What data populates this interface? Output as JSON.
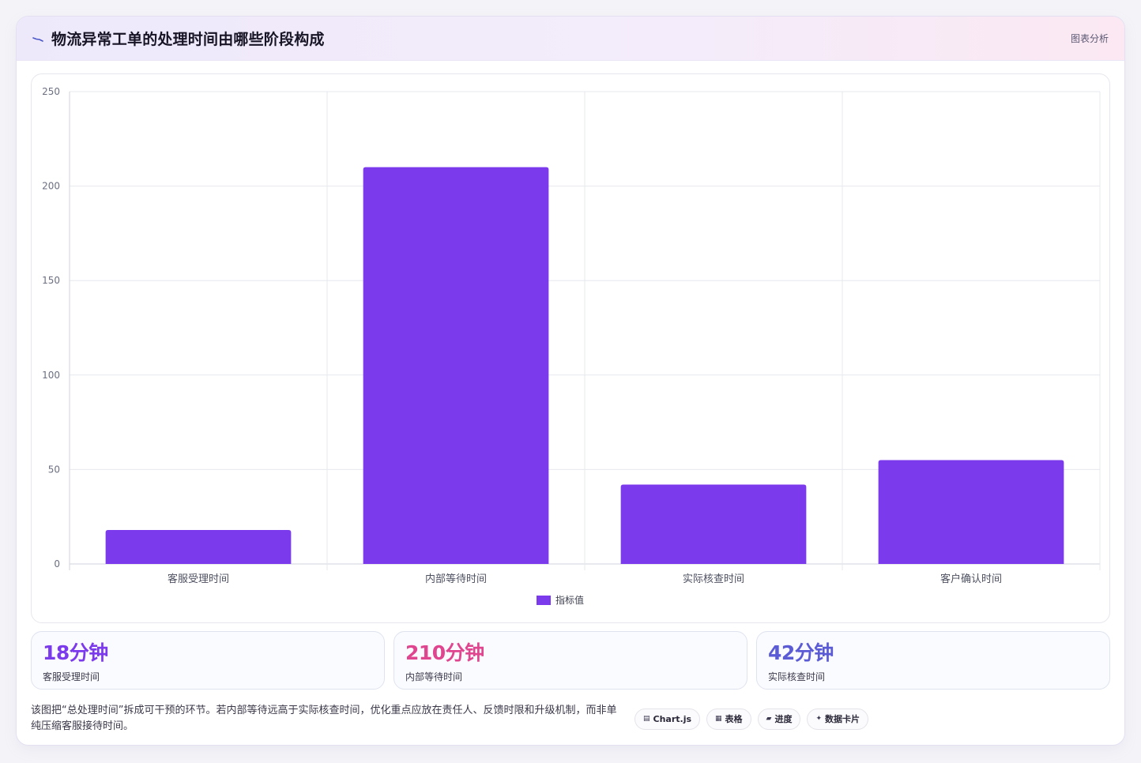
{
  "header": {
    "title": "物流异常工单的处理时间由哪些阶段构成",
    "tag": "图表分析"
  },
  "chart_data": {
    "type": "bar",
    "categories": [
      "客服受理时间",
      "内部等待时间",
      "实际核查时间",
      "客户确认时间"
    ],
    "series": [
      {
        "name": "指标值",
        "values": [
          18,
          210,
          42,
          55
        ]
      }
    ],
    "ylim": [
      0,
      250
    ],
    "yticks": [
      0,
      50,
      100,
      150,
      200,
      250
    ],
    "bar_color": "#7c3aed",
    "grid": true,
    "legend": "bottom"
  },
  "stats": [
    {
      "value": "18分钟",
      "label": "客服受理时间",
      "color": "#7c3aed"
    },
    {
      "value": "210分钟",
      "label": "内部等待时间",
      "color": "#e0468f"
    },
    {
      "value": "42分钟",
      "label": "实际核查时间",
      "color": "#5b5bd6"
    }
  ],
  "footer": {
    "note": "该图把“总处理时间”拆成可干预的环节。若内部等待远高于实际核查时间，优化重点应放在责任人、反馈时限和升级机制，而非单纯压缩客服接待时间。",
    "chips": [
      {
        "icon": "▤",
        "label": "Chart.js",
        "icon_name": "chart-icon"
      },
      {
        "icon": "▦",
        "label": "表格",
        "icon_name": "table-icon"
      },
      {
        "icon": "▰",
        "label": "进度",
        "icon_name": "progress-icon"
      },
      {
        "icon": "✦",
        "label": "数据卡片",
        "icon_name": "sparkle-icon"
      }
    ]
  }
}
